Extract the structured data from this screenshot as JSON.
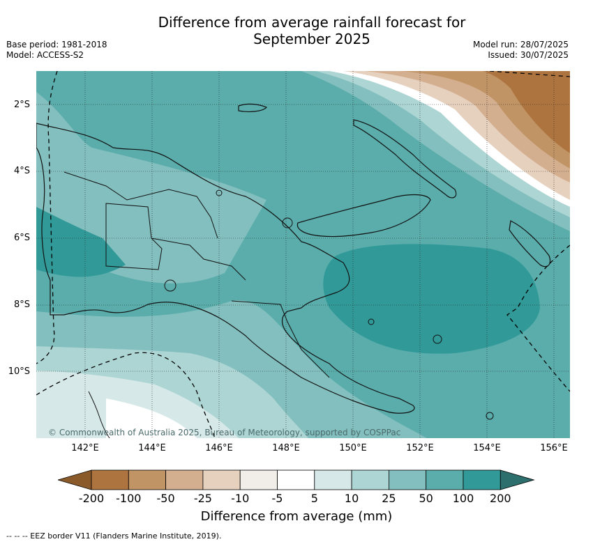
{
  "title_line1": "Difference from average rainfall forecast for",
  "title_line2": "September 2025",
  "base_period": "Base period: 1981-2018",
  "model": "Model: ACCESS-S2",
  "model_run": "Model run: 28/07/2025",
  "issued": "Issued: 30/07/2025",
  "lat_labels": [
    "2°S",
    "4°S",
    "6°S",
    "8°S",
    "10°S"
  ],
  "lon_labels": [
    "142°E",
    "144°E",
    "146°E",
    "148°E",
    "150°E",
    "152°E",
    "154°E",
    "156°E"
  ],
  "copyright": "© Commonwealth of Australia 2025, Bureau of Meteorology, supported by COSPPac",
  "colorbar": {
    "ticks": [
      "-200",
      "-100",
      "-50",
      "-25",
      "-10",
      "-5",
      "5",
      "10",
      "25",
      "50",
      "100",
      "200"
    ],
    "colors": [
      "#8a5a2a",
      "#ad743f",
      "#c19466",
      "#d3ae8f",
      "#e6d0be",
      "#f1ede9",
      "#ffffff",
      "#d6e9e8",
      "#acd5d4",
      "#83bfbe",
      "#5aadab",
      "#319a98",
      "#2d6f6c"
    ],
    "label": "Difference from average (mm)"
  },
  "footnote": "--  --  -- EEZ border V11 (Flanders Marine Institute, 2019)."
}
